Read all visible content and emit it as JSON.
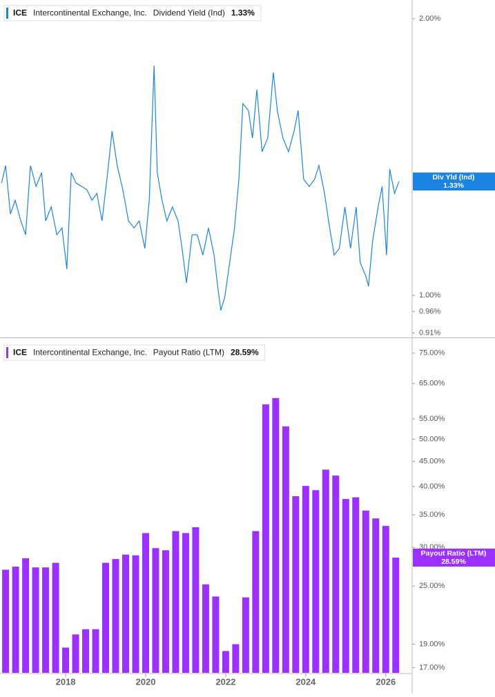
{
  "chart_data": [
    {
      "type": "line",
      "ticker": "ICE",
      "company": "Intercontinental Exchange, Inc.",
      "log_scale": true,
      "xlim": [
        2016.36,
        2026.66
      ],
      "ylim": [
        0.903,
        2.096
      ],
      "yticks": [
        {
          "value": 2,
          "label": "2.00%"
        },
        {
          "value": 1,
          "label": "1.00%"
        },
        {
          "value": 0.96,
          "label": "0.96%"
        },
        {
          "value": 0.91,
          "label": "0.91%"
        }
      ],
      "series": [
        {
          "name": "Dividend Yield (Ind)",
          "flag_label": "Div Yld (Ind)",
          "color": "#1a84e0",
          "x": [
            2016.4,
            2016.5,
            2016.62,
            2016.74,
            2016.88,
            2017.0,
            2017.12,
            2017.26,
            2017.4,
            2017.5,
            2017.64,
            2017.78,
            2017.91,
            2018.03,
            2018.14,
            2018.26,
            2018.4,
            2018.53,
            2018.66,
            2018.78,
            2018.91,
            2019.05,
            2019.16,
            2019.29,
            2019.43,
            2019.57,
            2019.71,
            2019.84,
            2019.98,
            2020.09,
            2020.21,
            2020.29,
            2020.41,
            2020.53,
            2020.67,
            2020.81,
            2020.91,
            2021.02,
            2021.16,
            2021.29,
            2021.43,
            2021.57,
            2021.71,
            2021.81,
            2021.88,
            2021.98,
            2022.1,
            2022.22,
            2022.33,
            2022.43,
            2022.57,
            2022.67,
            2022.78,
            2022.91,
            2023.05,
            2023.19,
            2023.29,
            2023.43,
            2023.57,
            2023.71,
            2023.81,
            2023.95,
            2024.09,
            2024.22,
            2024.33,
            2024.47,
            2024.57,
            2024.71,
            2024.84,
            2024.98,
            2025.12,
            2025.26,
            2025.36,
            2025.5,
            2025.57,
            2025.67,
            2025.81,
            2025.91,
            2026.02,
            2026.1,
            2026.22,
            2026.33
          ],
          "values": [
            1.325,
            1.384,
            1.226,
            1.269,
            1.205,
            1.164,
            1.384,
            1.314,
            1.36,
            1.205,
            1.248,
            1.164,
            1.184,
            1.068,
            1.36,
            1.325,
            1.314,
            1.303,
            1.269,
            1.291,
            1.205,
            1.36,
            1.509,
            1.384,
            1.303,
            1.205,
            1.184,
            1.205,
            1.125,
            1.269,
            1.778,
            1.36,
            1.269,
            1.205,
            1.248,
            1.205,
            1.125,
            1.032,
            1.164,
            1.164,
            1.106,
            1.184,
            1.106,
            1.014,
            0.963,
            0.997,
            1.086,
            1.184,
            1.337,
            1.617,
            1.589,
            1.483,
            1.674,
            1.433,
            1.483,
            1.748,
            1.589,
            1.483,
            1.433,
            1.509,
            1.589,
            1.337,
            1.314,
            1.337,
            1.384,
            1.291,
            1.205,
            1.106,
            1.125,
            1.248,
            1.125,
            1.248,
            1.086,
            1.05,
            1.023,
            1.144,
            1.248,
            1.314,
            1.106,
            1.372,
            1.291,
            1.33
          ],
          "value_labels": [
            null,
            null,
            null,
            null,
            null,
            null,
            null,
            null,
            null,
            null,
            null,
            null,
            null,
            null,
            null,
            null,
            null,
            null,
            null,
            null,
            null,
            null,
            null,
            null,
            null,
            null,
            null,
            null,
            null,
            null,
            null,
            null,
            null,
            null,
            null,
            null,
            null,
            null,
            null,
            null,
            null,
            null,
            null,
            null,
            null,
            null,
            null,
            null,
            null,
            null,
            null,
            null,
            null,
            null,
            null,
            null,
            null,
            null,
            null,
            null,
            null,
            null,
            null,
            null,
            null,
            null,
            null,
            null,
            null,
            null,
            null,
            null,
            null,
            null,
            null,
            null,
            null,
            null,
            null,
            null,
            null,
            "1.33%"
          ]
        }
      ]
    },
    {
      "type": "bar",
      "ticker": "ICE",
      "company": "Intercontinental Exchange, Inc.",
      "log_scale": true,
      "xlim": [
        2016.36,
        2026.66
      ],
      "xticks": [
        2018,
        2020,
        2022,
        2024,
        2026
      ],
      "ylim": [
        16.6,
        80
      ],
      "yticks": [
        {
          "value": 75,
          "label": "75.00%"
        },
        {
          "value": 65,
          "label": "65.00%"
        },
        {
          "value": 55,
          "label": "55.00%"
        },
        {
          "value": 50,
          "label": "50.00%"
        },
        {
          "value": 45,
          "label": "45.00%"
        },
        {
          "value": 40,
          "label": "40.00%"
        },
        {
          "value": 35,
          "label": "35.00%"
        },
        {
          "value": 30,
          "label": "30.00%"
        },
        {
          "value": 25,
          "label": "25.00%"
        },
        {
          "value": 19,
          "label": "19.00%"
        },
        {
          "value": 17,
          "label": "17.00%"
        }
      ],
      "series": [
        {
          "name": "Payout Ratio (LTM)",
          "color": "#9b30ff",
          "x": [
            2016.5,
            2016.75,
            2017.0,
            2017.25,
            2017.5,
            2017.75,
            2018.0,
            2018.25,
            2018.5,
            2018.75,
            2019.0,
            2019.25,
            2019.5,
            2019.75,
            2020.0,
            2020.25,
            2020.5,
            2020.75,
            2021.0,
            2021.25,
            2021.5,
            2021.75,
            2022.0,
            2022.25,
            2022.5,
            2022.75,
            2023.0,
            2023.25,
            2023.5,
            2023.75,
            2024.0,
            2024.25,
            2024.5,
            2024.75,
            2025.0,
            2025.25,
            2025.5,
            2025.75,
            2026.0,
            2026.25
          ],
          "values": [
            27.0,
            27.4,
            28.5,
            27.3,
            27.3,
            27.9,
            18.7,
            19.9,
            20.4,
            20.4,
            27.9,
            28.4,
            29.0,
            28.9,
            32.1,
            29.9,
            29.6,
            32.4,
            32.1,
            33.0,
            25.2,
            23.8,
            18.4,
            19.0,
            23.7,
            32.4,
            58.9,
            60.7,
            53.1,
            38.2,
            40.1,
            39.3,
            43.3,
            42.1,
            37.7,
            38.0,
            35.7,
            34.4,
            33.2,
            28.59
          ],
          "value_labels": [
            null,
            null,
            null,
            null,
            null,
            null,
            null,
            null,
            null,
            null,
            null,
            null,
            null,
            null,
            null,
            null,
            null,
            null,
            null,
            null,
            null,
            null,
            null,
            null,
            null,
            null,
            null,
            null,
            null,
            null,
            null,
            null,
            null,
            null,
            null,
            null,
            null,
            null,
            null,
            "28.59%"
          ]
        }
      ]
    }
  ]
}
